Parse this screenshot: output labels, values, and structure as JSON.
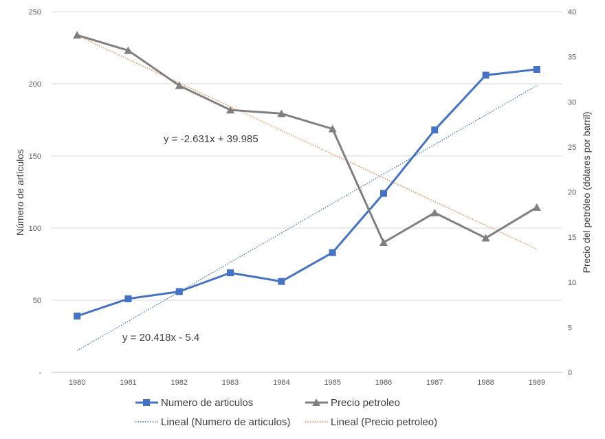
{
  "chart_data": {
    "type": "line",
    "categories": [
      "1980",
      "1981",
      "1982",
      "1983",
      "1984",
      "1985",
      "1986",
      "1987",
      "1988",
      "1989"
    ],
    "y_left": {
      "label": "Número de artículos",
      "range": [
        0,
        250
      ],
      "ticks": [
        "-",
        "50",
        "100",
        "150",
        "200",
        "250"
      ],
      "tick_values": [
        0,
        50,
        100,
        150,
        200,
        250
      ]
    },
    "y_right": {
      "label": "Precio del petróleo (dólares por barril)",
      "range": [
        0,
        40
      ],
      "ticks": [
        "0",
        "5",
        "10",
        "15",
        "20",
        "25",
        "30",
        "35",
        "40"
      ],
      "tick_values": [
        0,
        5,
        10,
        15,
        20,
        25,
        30,
        35,
        40
      ]
    },
    "gridlines": true,
    "series": [
      {
        "name": "Numero de articulos",
        "axis": "left",
        "marker": "square",
        "color": "#4472C4",
        "values": [
          39,
          51,
          56,
          69,
          63,
          83,
          124,
          168,
          206,
          210
        ]
      },
      {
        "name": "Precio petroleo",
        "axis": "right",
        "marker": "triangle",
        "color": "#7F7F7F",
        "values": [
          37.4,
          35.7,
          31.8,
          29.1,
          28.7,
          27.0,
          14.4,
          17.7,
          14.9,
          18.3
        ]
      }
    ],
    "trendlines": [
      {
        "name": "Lineal (Numero de articulos)",
        "axis": "left",
        "color": "#4472C4",
        "slope": 20.418,
        "intercept": -5.4,
        "equation": "y = 20.418x - 5.4"
      },
      {
        "name": "Lineal (Precio petroleo)",
        "axis": "right",
        "color": "#ED7D31",
        "slope": -2.631,
        "intercept": 39.985,
        "equation": "y = -2.631x + 39.985"
      }
    ],
    "legend_position": "bottom"
  }
}
